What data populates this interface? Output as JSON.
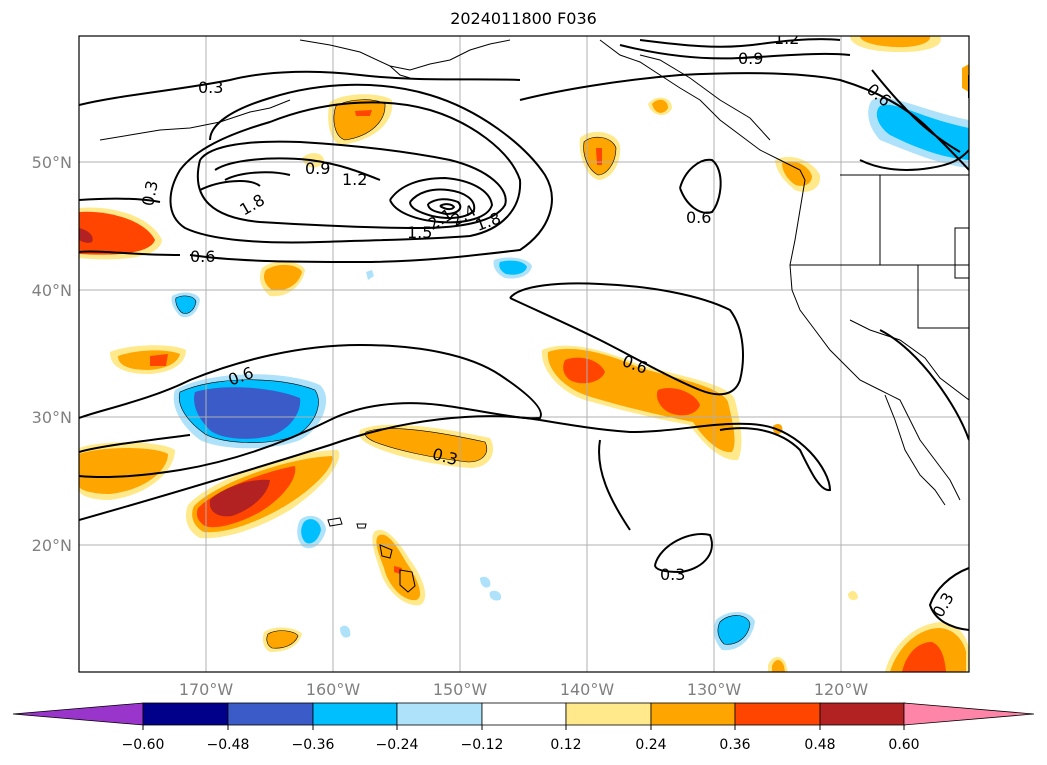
{
  "title": "2024011800 F036",
  "lat_labels": [
    "50°N",
    "40°N",
    "30°N",
    "20°N"
  ],
  "lon_labels": [
    "170°W",
    "160°W",
    "150°W",
    "140°W",
    "130°W",
    "120°W"
  ],
  "contour_labels": [
    "0.3",
    "0.3",
    "0.6",
    "0.6",
    "0.6",
    "0.6",
    "0.9",
    "0.9",
    "1.2",
    "1.2",
    "1.5",
    "1.8",
    "2.1",
    "2.4",
    "1.8",
    "0.3",
    "0.3",
    "0.6",
    "0.3"
  ],
  "colorbar": {
    "ticks": [
      "−0.60",
      "−0.48",
      "−0.36",
      "−0.24",
      "−0.12",
      "0.12",
      "0.24",
      "0.36",
      "0.48",
      "0.60"
    ],
    "colors": {
      "under": "#9a35cc",
      "c1": "#00008b",
      "c2": "#3a5bc8",
      "c3": "#00bfff",
      "c4": "#ade2fa",
      "c5": "#ffffff",
      "c6": "#ffe98a",
      "c7": "#ffa500",
      "c8": "#ff4500",
      "c9": "#b22222",
      "over": "#ff85a8"
    }
  }
}
